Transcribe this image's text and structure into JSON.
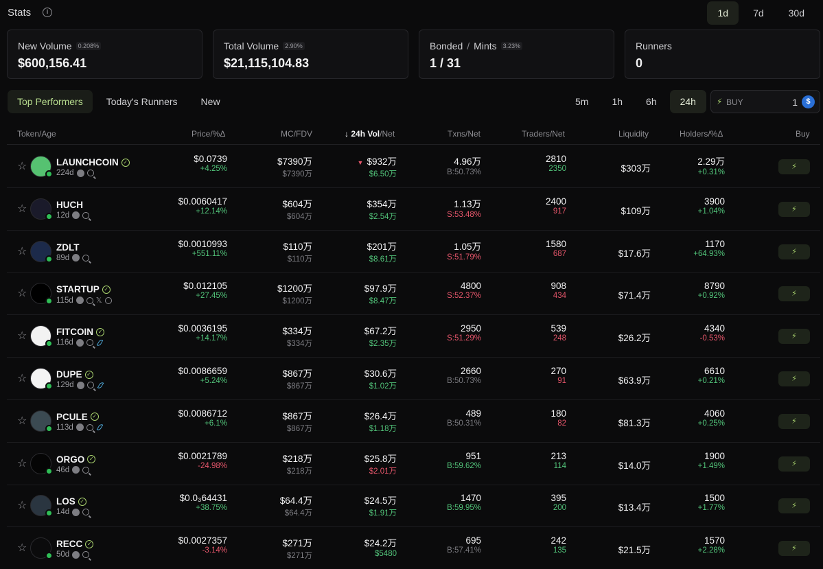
{
  "header": {
    "title": "Stats",
    "info_icon": "info-icon",
    "periods": [
      "1d",
      "7d",
      "30d"
    ],
    "active_period": "1d"
  },
  "cards": [
    {
      "label": "New Volume",
      "chip": "0.208%",
      "value": "$600,156.41"
    },
    {
      "label": "Total Volume",
      "chip": "2.90%",
      "value": "$21,115,104.83"
    },
    {
      "label": "Bonded",
      "label2": "Mints",
      "chip": "3.23%",
      "value": "1 / 31"
    },
    {
      "label": "Runners",
      "chip": "",
      "value": "0"
    }
  ],
  "filters": {
    "tabs": [
      "Top Performers",
      "Today's Runners",
      "New"
    ],
    "active_tab": "Top Performers",
    "times": [
      "5m",
      "1h",
      "6h",
      "24h"
    ],
    "active_time": "24h",
    "buy_label": "BUY",
    "buy_amount": "1",
    "buy_icon": "bolt-icon",
    "currency_icon": "usdc-icon"
  },
  "table": {
    "headers": {
      "token": "Token/Age",
      "price": "Price/%Δ",
      "mc": "MC/FDV",
      "vol": "24h Vol",
      "vol_sub": "/Net",
      "txns": "Txns/Net",
      "traders": "Traders/Net",
      "liquidity": "Liquidity",
      "holders": "Holders/%Δ",
      "buy": "Buy"
    },
    "rows": [
      {
        "name": "LAUNCHCOIN",
        "verified": true,
        "age": "224d",
        "extra": "",
        "avatar_color": "#56c271",
        "avatar_icon": "launchcoin-logo",
        "price": "$0.0739",
        "price_chg": "+4.25%",
        "price_dir": "up",
        "mc": "$7390万",
        "fdv": "$7390万",
        "vol": "$932万",
        "vol_down": true,
        "vol_net": "$6.50万",
        "vol_dir": "up",
        "txns": "4.96万",
        "txns_net": "B:50.73%",
        "txns_dir": "muted",
        "traders": "2810",
        "traders_net": "2350",
        "traders_dir": "up",
        "liquidity": "$303万",
        "holders": "2.29万",
        "holders_chg": "+0.31%",
        "holders_dir": "up"
      },
      {
        "name": "HUCH",
        "verified": false,
        "age": "12d",
        "extra": "",
        "avatar_color": "#1a1a2a",
        "avatar_icon": "huch-logo",
        "price": "$0.0060417",
        "price_chg": "+12.14%",
        "price_dir": "up",
        "mc": "$604万",
        "fdv": "$604万",
        "vol": "$354万",
        "vol_down": false,
        "vol_net": "$2.54万",
        "vol_dir": "up",
        "txns": "1.13万",
        "txns_net": "S:53.48%",
        "txns_dir": "down",
        "traders": "2400",
        "traders_net": "917",
        "traders_dir": "down",
        "liquidity": "$109万",
        "holders": "3900",
        "holders_chg": "+1.04%",
        "holders_dir": "up"
      },
      {
        "name": "ZDLT",
        "verified": false,
        "age": "89d",
        "extra": "",
        "avatar_color": "#1c2a4a",
        "avatar_icon": "zdlt-logo",
        "price": "$0.0010993",
        "price_chg": "+551.11%",
        "price_dir": "up",
        "mc": "$110万",
        "fdv": "$110万",
        "vol": "$201万",
        "vol_down": false,
        "vol_net": "$8.61万",
        "vol_dir": "up",
        "txns": "1.05万",
        "txns_net": "S:51.79%",
        "txns_dir": "down",
        "traders": "1580",
        "traders_net": "687",
        "traders_dir": "down",
        "liquidity": "$17.6万",
        "holders": "1170",
        "holders_chg": "+64.93%",
        "holders_dir": "up"
      },
      {
        "name": "STARTUP",
        "verified": true,
        "age": "115d",
        "extra": "x-globe",
        "avatar_color": "#000000",
        "avatar_icon": "startup-logo",
        "price": "$0.012105",
        "price_chg": "+27.45%",
        "price_dir": "up",
        "mc": "$1200万",
        "fdv": "$1200万",
        "vol": "$97.9万",
        "vol_down": false,
        "vol_net": "$8.47万",
        "vol_dir": "up",
        "txns": "4800",
        "txns_net": "S:52.37%",
        "txns_dir": "down",
        "traders": "908",
        "traders_net": "434",
        "traders_dir": "down",
        "liquidity": "$71.4万",
        "holders": "8790",
        "holders_chg": "+0.92%",
        "holders_dir": "up"
      },
      {
        "name": "FITCOIN",
        "verified": true,
        "age": "116d",
        "extra": "feather",
        "avatar_color": "#f2f2f2",
        "avatar_icon": "fitcoin-logo",
        "price": "$0.0036195",
        "price_chg": "+14.17%",
        "price_dir": "up",
        "mc": "$334万",
        "fdv": "$334万",
        "vol": "$67.2万",
        "vol_down": false,
        "vol_net": "$2.35万",
        "vol_dir": "up",
        "txns": "2950",
        "txns_net": "S:51.29%",
        "txns_dir": "down",
        "traders": "539",
        "traders_net": "248",
        "traders_dir": "down",
        "liquidity": "$26.2万",
        "holders": "4340",
        "holders_chg": "-0.53%",
        "holders_dir": "down"
      },
      {
        "name": "DUPE",
        "verified": true,
        "age": "129d",
        "extra": "feather",
        "avatar_color": "#f4f4f4",
        "avatar_icon": "dupe-logo",
        "price": "$0.0086659",
        "price_chg": "+5.24%",
        "price_dir": "up",
        "mc": "$867万",
        "fdv": "$867万",
        "vol": "$30.6万",
        "vol_down": false,
        "vol_net": "$1.02万",
        "vol_dir": "up",
        "txns": "2660",
        "txns_net": "B:50.73%",
        "txns_dir": "muted",
        "traders": "270",
        "traders_net": "91",
        "traders_dir": "down",
        "liquidity": "$63.9万",
        "holders": "6610",
        "holders_chg": "+0.21%",
        "holders_dir": "up"
      },
      {
        "name": "PCULE",
        "verified": true,
        "age": "113d",
        "extra": "feather",
        "avatar_color": "#3b4a52",
        "avatar_icon": "pcule-logo",
        "price": "$0.0086712",
        "price_chg": "+6.1%",
        "price_dir": "up",
        "mc": "$867万",
        "fdv": "$867万",
        "vol": "$26.4万",
        "vol_down": false,
        "vol_net": "$1.18万",
        "vol_dir": "up",
        "txns": "489",
        "txns_net": "B:50.31%",
        "txns_dir": "muted",
        "traders": "180",
        "traders_net": "82",
        "traders_dir": "down",
        "liquidity": "$81.3万",
        "holders": "4060",
        "holders_chg": "+0.25%",
        "holders_dir": "up"
      },
      {
        "name": "ORGO",
        "verified": true,
        "age": "46d",
        "extra": "",
        "avatar_color": "#050505",
        "avatar_icon": "orgo-logo",
        "price": "$0.0021789",
        "price_chg": "-24.98%",
        "price_dir": "down",
        "mc": "$218万",
        "fdv": "$218万",
        "vol": "$25.8万",
        "vol_down": false,
        "vol_net": "$2.01万",
        "vol_dir": "down",
        "txns": "951",
        "txns_net": "B:59.62%",
        "txns_dir": "up",
        "traders": "213",
        "traders_net": "114",
        "traders_dir": "up",
        "liquidity": "$14.0万",
        "holders": "1900",
        "holders_chg": "+1.49%",
        "holders_dir": "up"
      },
      {
        "name": "LOS",
        "verified": true,
        "age": "14d",
        "extra": "",
        "avatar_color": "#2a3540",
        "avatar_icon": "los-logo",
        "price": "$0.0₃64431",
        "price_chg": "+38.75%",
        "price_dir": "up",
        "mc": "$64.4万",
        "fdv": "$64.4万",
        "vol": "$24.5万",
        "vol_down": false,
        "vol_net": "$1.91万",
        "vol_dir": "up",
        "txns": "1470",
        "txns_net": "B:59.95%",
        "txns_dir": "up",
        "traders": "395",
        "traders_net": "200",
        "traders_dir": "up",
        "liquidity": "$13.4万",
        "holders": "1500",
        "holders_chg": "+1.77%",
        "holders_dir": "up"
      },
      {
        "name": "RECC",
        "verified": true,
        "age": "50d",
        "extra": "",
        "avatar_color": "#0b0b0c",
        "avatar_icon": "recc-logo",
        "price": "$0.0027357",
        "price_chg": "-3.14%",
        "price_dir": "down",
        "mc": "$271万",
        "fdv": "$271万",
        "vol": "$24.2万",
        "vol_down": false,
        "vol_net": "$5480",
        "vol_dir": "up",
        "txns": "695",
        "txns_net": "B:57.41%",
        "txns_dir": "muted",
        "traders": "242",
        "traders_net": "135",
        "traders_dir": "up",
        "liquidity": "$21.5万",
        "holders": "1570",
        "holders_chg": "+2.28%",
        "holders_dir": "up"
      }
    ]
  },
  "colors": {
    "background": "#0b0b0c",
    "accent": "#a9d36e",
    "up": "#52c47a",
    "down": "#e5566b"
  }
}
